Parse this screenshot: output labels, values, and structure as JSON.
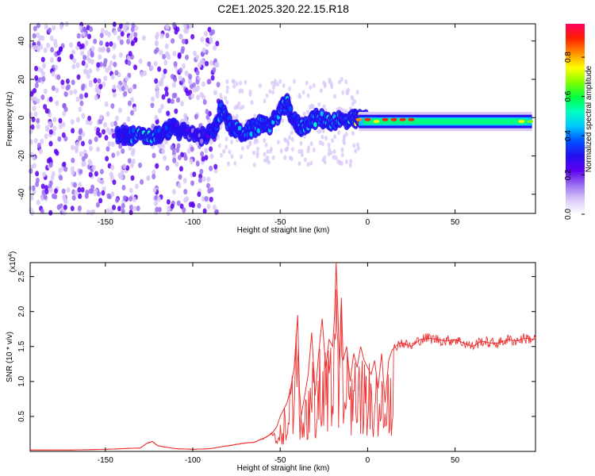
{
  "title": "C2E1.2025.320.22.15.R18",
  "chart_data": [
    {
      "type": "heatmap",
      "title": "C2E1.2025.320.22.15.R18",
      "xlabel": "Height of straight line (km)",
      "ylabel": "Frequency (Hz)",
      "xlim": [
        -193,
        96
      ],
      "ylim": [
        -50,
        49
      ],
      "xticks": [
        -150,
        -100,
        -50,
        0,
        50
      ],
      "yticks": [
        -40,
        -20,
        0,
        20,
        40
      ],
      "colorbar": {
        "label": "Normalized spectral amplitude",
        "range": [
          0.0,
          0.97
        ],
        "ticks": [
          "0.0",
          "0.2",
          "0.4",
          "0.6",
          "0.8"
        ],
        "colors": [
          "#ffffff",
          "#d9c8f8",
          "#9b6ef0",
          "#5c00f0",
          "#2410f0",
          "#0050ff",
          "#00c8ff",
          "#00ffc0",
          "#00ff40",
          "#80ff00",
          "#ffff00",
          "#ff9000",
          "#ff2000",
          "#ff0060"
        ]
      },
      "track": [
        {
          "x": -143,
          "y": -9,
          "level": 0.35
        },
        {
          "x": -138,
          "y": -9,
          "level": 0.3
        },
        {
          "x": -130,
          "y": -10,
          "level": 0.55
        },
        {
          "x": -125,
          "y": -10,
          "level": 0.5
        },
        {
          "x": -118,
          "y": -9,
          "level": 0.3
        },
        {
          "x": -112,
          "y": -5,
          "level": 0.35
        },
        {
          "x": -105,
          "y": -8,
          "level": 0.25
        },
        {
          "x": -95,
          "y": -10,
          "level": 0.2
        },
        {
          "x": -88,
          "y": -7,
          "level": 0.3
        },
        {
          "x": -84,
          "y": 4,
          "level": 0.45
        },
        {
          "x": -78,
          "y": -5,
          "level": 0.35
        },
        {
          "x": -72,
          "y": -8,
          "level": 0.4
        },
        {
          "x": -66,
          "y": -6,
          "level": 0.4
        },
        {
          "x": -60,
          "y": -3,
          "level": 0.45
        },
        {
          "x": -55,
          "y": -4,
          "level": 0.4
        },
        {
          "x": -50,
          "y": 4,
          "level": 0.5
        },
        {
          "x": -46,
          "y": 7,
          "level": 0.45
        },
        {
          "x": -42,
          "y": -2,
          "level": 0.35
        },
        {
          "x": -38,
          "y": -5,
          "level": 0.4
        },
        {
          "x": -33,
          "y": -2,
          "level": 0.45
        },
        {
          "x": -28,
          "y": 0,
          "level": 0.45
        },
        {
          "x": -22,
          "y": -2,
          "level": 0.45
        },
        {
          "x": -17,
          "y": -1,
          "level": 0.5
        },
        {
          "x": -12,
          "y": -2,
          "level": 0.55
        },
        {
          "x": -8,
          "y": -1,
          "level": 0.6
        },
        {
          "x": -5,
          "y": -1,
          "level": 0.85
        },
        {
          "x": 0,
          "y": -1,
          "level": 0.9
        },
        {
          "x": 5,
          "y": -2,
          "level": 0.8
        },
        {
          "x": 10,
          "y": -1,
          "level": 0.9
        },
        {
          "x": 15,
          "y": -1,
          "level": 0.95
        },
        {
          "x": 20,
          "y": -1,
          "level": 0.95
        },
        {
          "x": 25,
          "y": -1,
          "level": 0.9
        },
        {
          "x": 30,
          "y": -2,
          "level": 0.45
        },
        {
          "x": 40,
          "y": -2,
          "level": 0.45
        },
        {
          "x": 50,
          "y": -2,
          "level": 0.4
        },
        {
          "x": 60,
          "y": -2,
          "level": 0.45
        },
        {
          "x": 70,
          "y": -2,
          "level": 0.4
        },
        {
          "x": 80,
          "y": -2,
          "level": 0.45
        },
        {
          "x": 88,
          "y": -2,
          "level": 0.75
        },
        {
          "x": 93,
          "y": -2,
          "level": 0.7
        }
      ],
      "noise_region_km": [
        -193,
        -85
      ]
    },
    {
      "type": "line",
      "xlabel": "Height of straight line (km)",
      "ylabel": "SNR (10 * v/v)",
      "y_multiplier": "(x10",
      "y_multiplier_exp": "4",
      "y_multiplier_close": ")",
      "xlim": [
        -193,
        96
      ],
      "ylim": [
        0,
        2.7
      ],
      "xticks": [
        -150,
        -100,
        -50,
        0,
        50
      ],
      "yticks": [
        "0.5",
        "1.0",
        "1.5",
        "2.0",
        "2.5"
      ],
      "color": "#ee3030",
      "series": [
        {
          "name": "SNR",
          "x": [
            -193,
            -170,
            -150,
            -130,
            -126,
            -123,
            -120,
            -110,
            -100,
            -90,
            -80,
            -75,
            -70,
            -65,
            -60,
            -55,
            -52,
            -50,
            -48,
            -46,
            -44,
            -42,
            -40,
            -39,
            -38,
            -36,
            -34,
            -32,
            -30,
            -28,
            -26,
            -24,
            -22,
            -20,
            -19,
            -18,
            -17,
            -16,
            -15,
            -14,
            -12,
            -10,
            -8,
            -6,
            -4,
            -2,
            0,
            2,
            4,
            6,
            8,
            10,
            12,
            14,
            16,
            18,
            20,
            25,
            30,
            35,
            40,
            45,
            50,
            55,
            60,
            65,
            70,
            75,
            80,
            85,
            90,
            96
          ],
          "y": [
            0.02,
            0.02,
            0.03,
            0.05,
            0.12,
            0.14,
            0.08,
            0.04,
            0.03,
            0.04,
            0.08,
            0.1,
            0.12,
            0.13,
            0.18,
            0.25,
            0.35,
            0.5,
            0.6,
            0.7,
            0.9,
            1.2,
            1.95,
            0.9,
            0.5,
            0.8,
            1.1,
            1.7,
            0.8,
            1.4,
            1.9,
            1.2,
            1.6,
            1.5,
            1.9,
            2.7,
            2.0,
            1.2,
            2.2,
            1.3,
            1.5,
            1.0,
            1.4,
            1.2,
            1.5,
            1.3,
            1.2,
            1.1,
            1.3,
            0.9,
            1.4,
            0.7,
            1.3,
            1.45,
            1.5,
            1.55,
            1.55,
            1.5,
            1.6,
            1.62,
            1.6,
            1.58,
            1.6,
            1.55,
            1.5,
            1.58,
            1.55,
            1.55,
            1.6,
            1.58,
            1.62,
            1.6
          ]
        }
      ]
    }
  ]
}
